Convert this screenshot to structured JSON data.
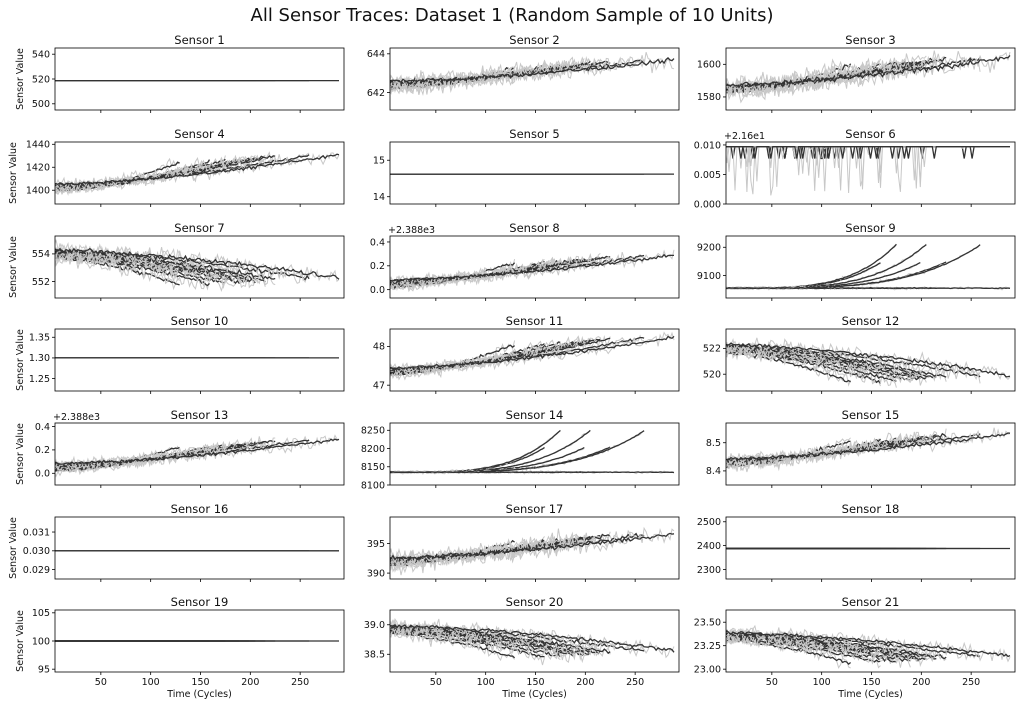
{
  "figure": {
    "title": "All Sensor Traces: Dataset 1 (Random Sample of 10 Units)",
    "ylabel": "Sensor Value",
    "xlabel": "Time (Cycles)",
    "x_ticks": [
      50,
      100,
      150,
      200,
      250
    ]
  },
  "chart_data": {
    "type": "line",
    "grid": false,
    "x_range": [
      4,
      294
    ],
    "series_color_light": "#c8c8c8",
    "series_color_dark": "#333333",
    "units_sampled": 10,
    "unit_lengths": [
      130,
      160,
      175,
      190,
      200,
      205,
      215,
      225,
      260,
      290
    ],
    "panels": [
      {
        "title": "Sensor 1",
        "ylim": [
          495,
          545
        ],
        "yticks": [
          500,
          520,
          540
        ],
        "offset": "",
        "kind": "constant",
        "base": 518.67,
        "end": 518.67,
        "noise": 0
      },
      {
        "title": "Sensor 2",
        "ylim": [
          641.1,
          644.3
        ],
        "yticks": [
          642,
          644
        ],
        "offset": "",
        "kind": "rising",
        "base": 642.4,
        "end": 643.5,
        "noise": 0.35
      },
      {
        "title": "Sensor 3",
        "ylim": [
          1572,
          1610
        ],
        "yticks": [
          1580,
          1600
        ],
        "offset": "",
        "kind": "rising",
        "base": 1585,
        "end": 1602,
        "noise": 5
      },
      {
        "title": "Sensor 4",
        "ylim": [
          1388,
          1442
        ],
        "yticks": [
          1400,
          1420,
          1440
        ],
        "offset": "",
        "kind": "rising",
        "base": 1402,
        "end": 1428,
        "noise": 4
      },
      {
        "title": "Sensor 5",
        "ylim": [
          13.8,
          15.5
        ],
        "yticks": [
          14,
          15
        ],
        "offset": "",
        "kind": "constant",
        "base": 14.62,
        "end": 14.62,
        "noise": 0
      },
      {
        "title": "Sensor 6",
        "ylim": [
          0,
          0.0105
        ],
        "yticks": [
          0.0,
          0.005,
          0.01
        ],
        "ytick_labels": [
          "0.000",
          "0.005",
          "0.010"
        ],
        "offset": "+2.16e1",
        "kind": "spiky",
        "base": 0.0097,
        "end": 0.0097,
        "noise": 0
      },
      {
        "title": "Sensor 7",
        "ylim": [
          550.8,
          555.3
        ],
        "yticks": [
          552,
          554
        ],
        "offset": "",
        "kind": "falling",
        "base": 554.0,
        "end": 552.0,
        "noise": 0.5
      },
      {
        "title": "Sensor 8",
        "ylim": [
          -0.07,
          0.45
        ],
        "yticks": [
          0.0,
          0.2,
          0.4
        ],
        "ytick_labels": [
          "0.0",
          "0.2",
          "0.4"
        ],
        "offset": "+2.388e3",
        "kind": "rising",
        "base": 0.05,
        "end": 0.26,
        "noise": 0.04
      },
      {
        "title": "Sensor 9",
        "ylim": [
          9020,
          9240
        ],
        "yticks": [
          9100,
          9200
        ],
        "offset": "",
        "kind": "divergent",
        "base": 9055,
        "end": 9210,
        "noise": 4
      },
      {
        "title": "Sensor 10",
        "ylim": [
          1.22,
          1.37
        ],
        "yticks": [
          1.25,
          1.3,
          1.35
        ],
        "ytick_labels": [
          "1.25",
          "1.30",
          "1.35"
        ],
        "offset": "",
        "kind": "constant",
        "base": 1.3,
        "end": 1.3,
        "noise": 0
      },
      {
        "title": "Sensor 11",
        "ylim": [
          46.85,
          48.45
        ],
        "yticks": [
          47,
          48
        ],
        "offset": "",
        "kind": "rising",
        "base": 47.35,
        "end": 48.15,
        "noise": 0.12
      },
      {
        "title": "Sensor 12",
        "ylim": [
          518.7,
          523.5
        ],
        "yticks": [
          520,
          522
        ],
        "offset": "",
        "kind": "falling",
        "base": 522.0,
        "end": 519.6,
        "noise": 0.45
      },
      {
        "title": "Sensor 13",
        "ylim": [
          -0.1,
          0.43
        ],
        "yticks": [
          0.0,
          0.2,
          0.4
        ],
        "ytick_labels": [
          "0.0",
          "0.2",
          "0.4"
        ],
        "offset": "+2.388e3",
        "kind": "rising",
        "base": 0.05,
        "end": 0.26,
        "noise": 0.04
      },
      {
        "title": "Sensor 14",
        "ylim": [
          8100,
          8270
        ],
        "yticks": [
          8100,
          8150,
          8200,
          8250
        ],
        "offset": "",
        "kind": "divergent",
        "base": 8135,
        "end": 8250,
        "noise": 3
      },
      {
        "title": "Sensor 15",
        "ylim": [
          8.35,
          8.57
        ],
        "yticks": [
          8.4,
          8.5
        ],
        "ytick_labels": [
          "8.4",
          "8.5"
        ],
        "offset": "",
        "kind": "rising",
        "base": 8.43,
        "end": 8.52,
        "noise": 0.02
      },
      {
        "title": "Sensor 16",
        "ylim": [
          0.0285,
          0.0318
        ],
        "yticks": [
          0.029,
          0.03,
          0.031
        ],
        "ytick_labels": [
          "0.029",
          "0.030",
          "0.031"
        ],
        "offset": "",
        "kind": "constant",
        "base": 0.03,
        "end": 0.03,
        "noise": 0
      },
      {
        "title": "Sensor 17",
        "ylim": [
          389,
          399.5
        ],
        "yticks": [
          390,
          395
        ],
        "offset": "",
        "kind": "rising",
        "base": 392,
        "end": 396,
        "noise": 1.2
      },
      {
        "title": "Sensor 18",
        "ylim": [
          2260,
          2520
        ],
        "yticks": [
          2300,
          2400,
          2500
        ],
        "offset": "",
        "kind": "constant",
        "base": 2388,
        "end": 2388,
        "noise": 0
      },
      {
        "title": "Sensor 19",
        "ylim": [
          94.5,
          105.5
        ],
        "yticks": [
          95,
          100,
          105
        ],
        "offset": "",
        "kind": "constant",
        "base": 100,
        "end": 100,
        "noise": 0
      },
      {
        "title": "Sensor 20",
        "ylim": [
          38.2,
          39.25
        ],
        "yticks": [
          38.5,
          39.0
        ],
        "ytick_labels": [
          "38.5",
          "39.0"
        ],
        "offset": "",
        "kind": "falling",
        "base": 38.92,
        "end": 38.5,
        "noise": 0.1
      },
      {
        "title": "Sensor 21",
        "ylim": [
          22.97,
          23.63
        ],
        "yticks": [
          23.0,
          23.25,
          23.5
        ],
        "ytick_labels": [
          "23.00",
          "23.25",
          "23.50"
        ],
        "offset": "",
        "kind": "falling",
        "base": 23.35,
        "end": 23.1,
        "noise": 0.06
      }
    ]
  }
}
